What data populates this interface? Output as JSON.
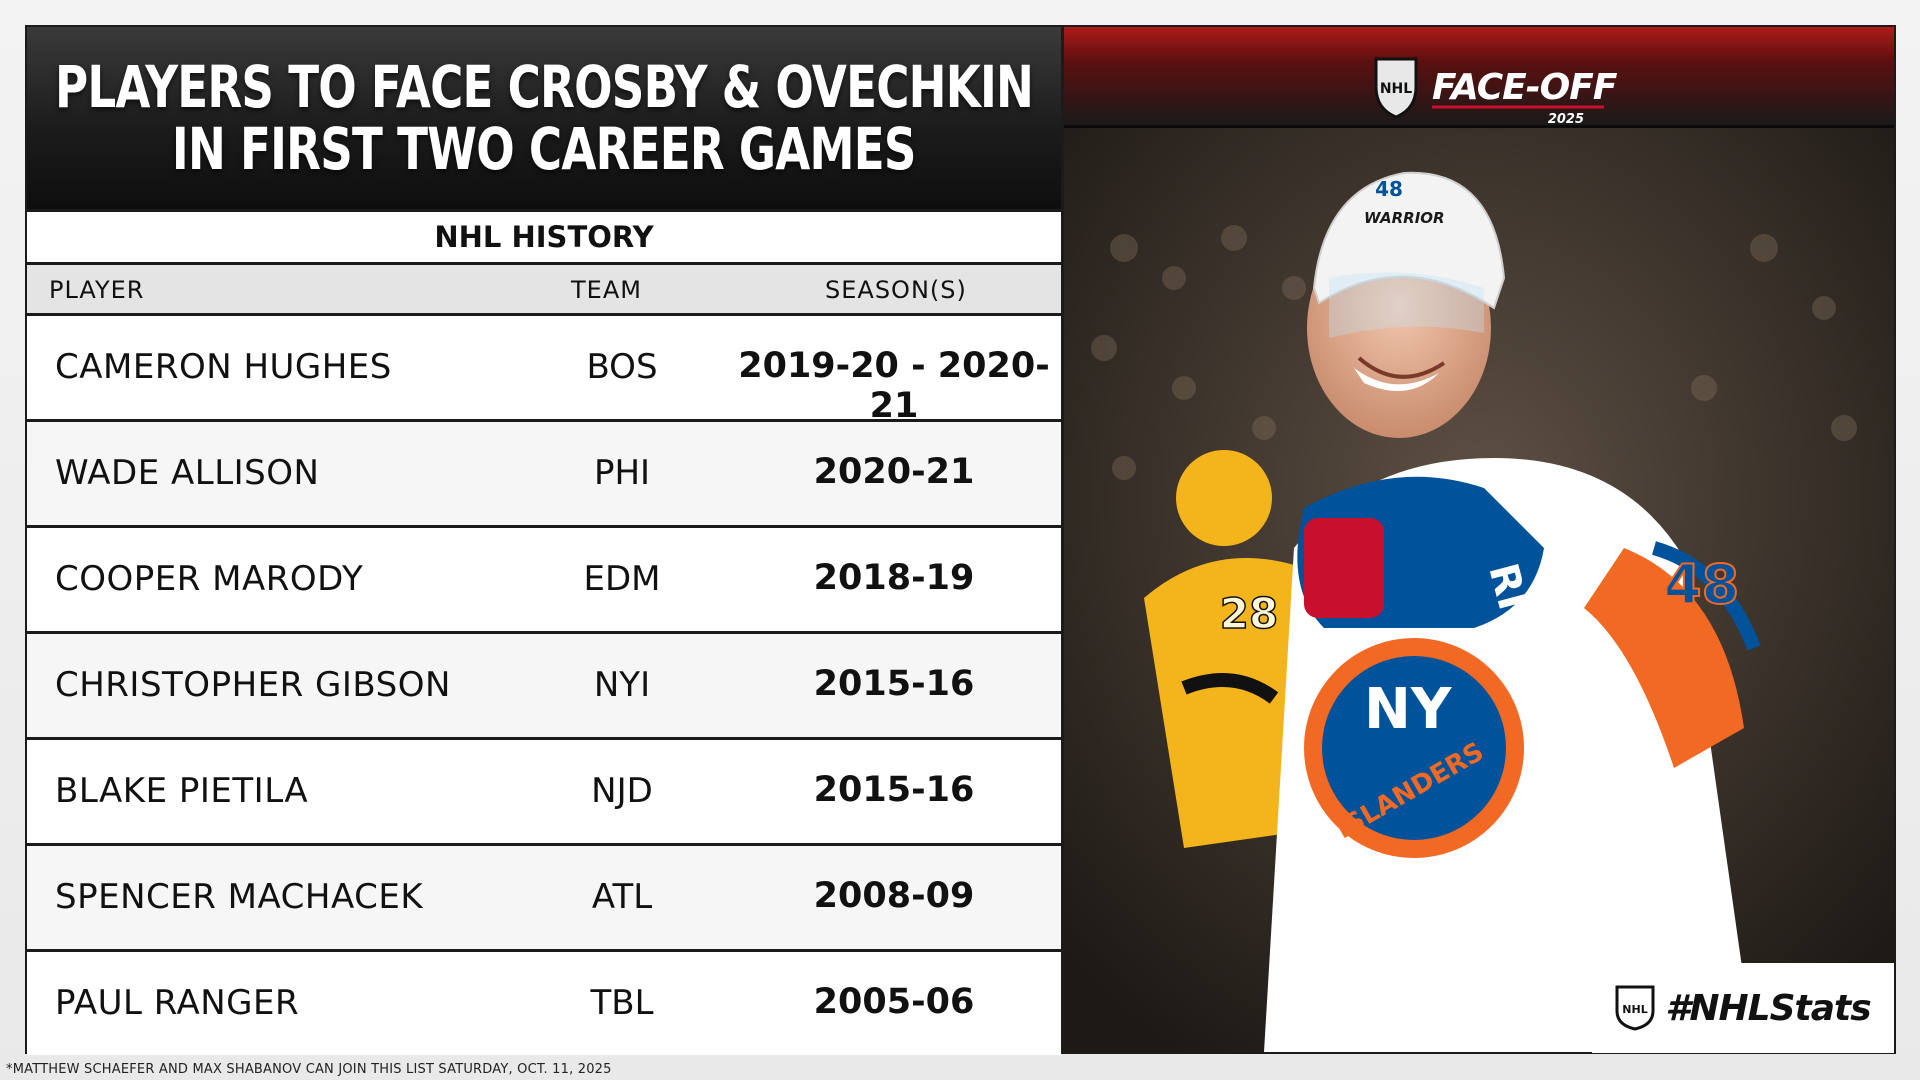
{
  "header": {
    "title_line1": "PLAYERS TO FACE CROSBY & OVECHKIN",
    "title_line2": "IN FIRST TWO CAREER GAMES"
  },
  "subheader": "NHL HISTORY",
  "columns": {
    "player": "PLAYER",
    "team": "TEAM",
    "seasons": "SEASON(S)"
  },
  "rows": [
    {
      "player": "CAMERON HUGHES",
      "team": "BOS",
      "seasons": "2019-20 - 2020-21"
    },
    {
      "player": "WADE ALLISON",
      "team": "PHI",
      "seasons": "2020-21"
    },
    {
      "player": "COOPER MARODY",
      "team": "EDM",
      "seasons": "2018-19"
    },
    {
      "player": "CHRISTOPHER GIBSON",
      "team": "NYI",
      "seasons": "2015-16"
    },
    {
      "player": "BLAKE PIETILA",
      "team": "NJD",
      "seasons": "2015-16"
    },
    {
      "player": "SPENCER MACHACEK",
      "team": "ATL",
      "seasons": "2008-09"
    },
    {
      "player": "PAUL RANGER",
      "team": "TBL",
      "seasons": "2005-06"
    }
  ],
  "footnote": "*MATTHEW SCHAEFER AND MAX SHABANOV CAN JOIN THIS LIST SATURDAY, OCT. 11, 2025",
  "branding": {
    "faceoff_text": "FACE-OFF",
    "faceoff_year": "2025",
    "nhl_shield_text": "NHL",
    "hashtag": "#NHLStats",
    "helmet_brand": "WARRIOR",
    "helmet_number": "48",
    "jersey_wordmark": "ISLANDERS",
    "jersey_ny": "NY",
    "jersey_number": "48",
    "glove_brand": "RIOR",
    "opponent_number": "28",
    "icons": [
      "nhl-shield-icon"
    ],
    "colors": {
      "islanders_orange": "#f26924",
      "islanders_blue": "#00539b",
      "penguins_gold": "#f4b41c",
      "faceoff_red": "#c8102e"
    }
  }
}
